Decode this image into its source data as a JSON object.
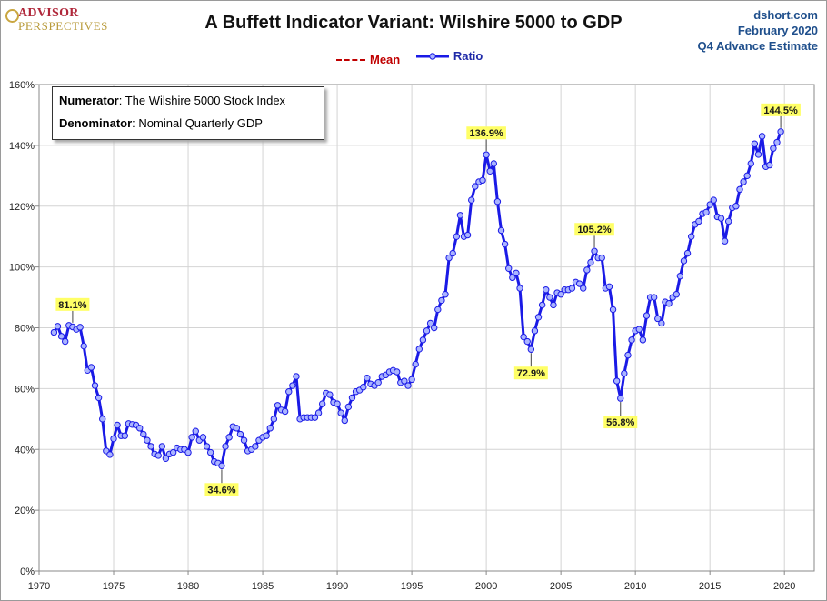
{
  "logo": {
    "line1": "ADVISOR",
    "line2": "PERSPECTIVES"
  },
  "header": {
    "title": "A Buffett Indicator Variant: Wilshire 5000 to GDP",
    "site": "dshort.com",
    "date": "February 2020",
    "estimate": "Q4 Advance Estimate"
  },
  "legend": {
    "mean": "Mean",
    "ratio": "Ratio"
  },
  "infobox": {
    "numerator_label": "Numerator",
    "numerator_text": ": The Wilshire 5000 Stock Index",
    "denominator_label": "Denominator",
    "denominator_text": ": Nominal Quarterly GDP"
  },
  "colors": {
    "ratio": "#1a1ae6",
    "marker_fill": "#aab4ff",
    "mean": "#c00000",
    "annotation_bg": "#ffff66"
  },
  "chart_data": {
    "type": "line",
    "xlim": [
      1970,
      2022
    ],
    "ylim": [
      0,
      160
    ],
    "x_ticks": [
      1970,
      1975,
      1980,
      1985,
      1990,
      1995,
      2000,
      2005,
      2010,
      2015,
      2020
    ],
    "x_tick_labels": [
      "1970",
      "1975",
      "1980",
      "1985",
      "1990",
      "1995",
      "2000",
      "2005",
      "2010",
      "2015",
      "2020"
    ],
    "y_ticks": [
      0,
      20,
      40,
      60,
      80,
      100,
      120,
      140,
      160
    ],
    "y_tick_labels": [
      "0%",
      "20%",
      "40%",
      "60%",
      "80%",
      "100%",
      "120%",
      "140%",
      "160%"
    ],
    "grid": true,
    "series": [
      {
        "name": "Ratio",
        "points": [
          [
            1971.0,
            78.5
          ],
          [
            1971.25,
            80.5
          ],
          [
            1971.5,
            77.2
          ],
          [
            1971.75,
            75.5
          ],
          [
            1972.0,
            80.8
          ],
          [
            1972.25,
            80.3
          ],
          [
            1972.5,
            79.5
          ],
          [
            1972.75,
            80.2
          ],
          [
            1973.0,
            74.0
          ],
          [
            1973.25,
            66.0
          ],
          [
            1973.5,
            67.0
          ],
          [
            1973.75,
            61.0
          ],
          [
            1974.0,
            57.0
          ],
          [
            1974.25,
            50.0
          ],
          [
            1974.5,
            39.5
          ],
          [
            1974.75,
            38.3
          ],
          [
            1975.0,
            43.5
          ],
          [
            1975.25,
            48.0
          ],
          [
            1975.5,
            44.5
          ],
          [
            1975.75,
            44.5
          ],
          [
            1976.0,
            48.5
          ],
          [
            1976.25,
            48.2
          ],
          [
            1976.5,
            48.0
          ],
          [
            1976.75,
            47.0
          ],
          [
            1977.0,
            45.0
          ],
          [
            1977.25,
            43.0
          ],
          [
            1977.5,
            41.0
          ],
          [
            1977.75,
            38.5
          ],
          [
            1978.0,
            38.0
          ],
          [
            1978.25,
            41.0
          ],
          [
            1978.5,
            37.0
          ],
          [
            1978.75,
            38.5
          ],
          [
            1979.0,
            39.0
          ],
          [
            1979.25,
            40.5
          ],
          [
            1979.5,
            40.0
          ],
          [
            1979.75,
            40.0
          ],
          [
            1980.0,
            39.0
          ],
          [
            1980.25,
            44.0
          ],
          [
            1980.5,
            46.0
          ],
          [
            1980.75,
            43.0
          ],
          [
            1981.0,
            44.0
          ],
          [
            1981.25,
            41.0
          ],
          [
            1981.5,
            39.0
          ],
          [
            1981.75,
            36.0
          ],
          [
            1982.0,
            35.5
          ],
          [
            1982.25,
            34.6
          ],
          [
            1982.5,
            41.0
          ],
          [
            1982.75,
            44.0
          ],
          [
            1983.0,
            47.5
          ],
          [
            1983.25,
            47.0
          ],
          [
            1983.5,
            45.0
          ],
          [
            1983.75,
            43.0
          ],
          [
            1984.0,
            39.5
          ],
          [
            1984.25,
            40.0
          ],
          [
            1984.5,
            41.0
          ],
          [
            1984.75,
            43.0
          ],
          [
            1985.0,
            44.0
          ],
          [
            1985.25,
            44.5
          ],
          [
            1985.5,
            47.0
          ],
          [
            1985.75,
            50.0
          ],
          [
            1986.0,
            54.5
          ],
          [
            1986.25,
            53.0
          ],
          [
            1986.5,
            52.5
          ],
          [
            1986.75,
            59.0
          ],
          [
            1987.0,
            61.0
          ],
          [
            1987.25,
            64.0
          ],
          [
            1987.5,
            50.0
          ],
          [
            1987.75,
            50.5
          ],
          [
            1988.0,
            50.5
          ],
          [
            1988.25,
            50.5
          ],
          [
            1988.5,
            50.5
          ],
          [
            1988.75,
            52.0
          ],
          [
            1989.0,
            55.0
          ],
          [
            1989.25,
            58.5
          ],
          [
            1989.5,
            58.0
          ],
          [
            1989.75,
            55.5
          ],
          [
            1990.0,
            55.0
          ],
          [
            1990.25,
            52.0
          ],
          [
            1990.5,
            49.5
          ],
          [
            1990.75,
            54.0
          ],
          [
            1991.0,
            57.0
          ],
          [
            1991.25,
            59.0
          ],
          [
            1991.5,
            59.5
          ],
          [
            1991.75,
            60.5
          ],
          [
            1992.0,
            63.5
          ],
          [
            1992.25,
            61.5
          ],
          [
            1992.5,
            61.0
          ],
          [
            1992.75,
            62.0
          ],
          [
            1993.0,
            64.0
          ],
          [
            1993.25,
            64.5
          ],
          [
            1993.5,
            65.5
          ],
          [
            1993.75,
            66.0
          ],
          [
            1994.0,
            65.5
          ],
          [
            1994.25,
            62.0
          ],
          [
            1994.5,
            62.5
          ],
          [
            1994.75,
            61.0
          ],
          [
            1995.0,
            63.0
          ],
          [
            1995.25,
            68.0
          ],
          [
            1995.5,
            73.0
          ],
          [
            1995.75,
            76.0
          ],
          [
            1996.0,
            79.0
          ],
          [
            1996.25,
            81.5
          ],
          [
            1996.5,
            80.0
          ],
          [
            1996.75,
            86.0
          ],
          [
            1997.0,
            89.0
          ],
          [
            1997.25,
            91.0
          ],
          [
            1997.5,
            103.0
          ],
          [
            1997.75,
            104.5
          ],
          [
            1998.0,
            110.0
          ],
          [
            1998.25,
            117.0
          ],
          [
            1998.5,
            110.0
          ],
          [
            1998.75,
            110.5
          ],
          [
            1999.0,
            122.0
          ],
          [
            1999.25,
            126.5
          ],
          [
            1999.5,
            128.0
          ],
          [
            1999.75,
            128.5
          ],
          [
            2000.0,
            136.9
          ],
          [
            2000.25,
            131.5
          ],
          [
            2000.5,
            134.0
          ],
          [
            2000.75,
            121.5
          ],
          [
            2001.0,
            112.0
          ],
          [
            2001.25,
            107.5
          ],
          [
            2001.5,
            99.5
          ],
          [
            2001.75,
            96.5
          ],
          [
            2002.0,
            98.0
          ],
          [
            2002.25,
            93.0
          ],
          [
            2002.5,
            77.0
          ],
          [
            2002.75,
            75.5
          ],
          [
            2003.0,
            72.9
          ],
          [
            2003.25,
            79.0
          ],
          [
            2003.5,
            83.5
          ],
          [
            2003.75,
            87.5
          ],
          [
            2004.0,
            92.5
          ],
          [
            2004.25,
            90.0
          ],
          [
            2004.5,
            87.5
          ],
          [
            2004.75,
            91.5
          ],
          [
            2005.0,
            91.0
          ],
          [
            2005.25,
            92.5
          ],
          [
            2005.5,
            92.5
          ],
          [
            2005.75,
            93.0
          ],
          [
            2006.0,
            95.0
          ],
          [
            2006.25,
            94.5
          ],
          [
            2006.5,
            93.0
          ],
          [
            2006.75,
            99.0
          ],
          [
            2007.0,
            101.5
          ],
          [
            2007.25,
            105.2
          ],
          [
            2007.5,
            103.0
          ],
          [
            2007.75,
            103.0
          ],
          [
            2008.0,
            93.0
          ],
          [
            2008.25,
            93.5
          ],
          [
            2008.5,
            86.0
          ],
          [
            2008.75,
            62.5
          ],
          [
            2009.0,
            56.8
          ],
          [
            2009.25,
            65.0
          ],
          [
            2009.5,
            71.0
          ],
          [
            2009.75,
            76.0
          ],
          [
            2010.0,
            79.0
          ],
          [
            2010.25,
            79.5
          ],
          [
            2010.5,
            76.0
          ],
          [
            2010.75,
            84.0
          ],
          [
            2011.0,
            90.0
          ],
          [
            2011.25,
            90.0
          ],
          [
            2011.5,
            83.0
          ],
          [
            2011.75,
            81.5
          ],
          [
            2012.0,
            88.5
          ],
          [
            2012.25,
            88.0
          ],
          [
            2012.5,
            90.0
          ],
          [
            2012.75,
            91.0
          ],
          [
            2013.0,
            97.0
          ],
          [
            2013.25,
            102.0
          ],
          [
            2013.5,
            104.5
          ],
          [
            2013.75,
            110.0
          ],
          [
            2014.0,
            114.0
          ],
          [
            2014.25,
            115.0
          ],
          [
            2014.5,
            117.5
          ],
          [
            2014.75,
            118.0
          ],
          [
            2015.0,
            120.5
          ],
          [
            2015.25,
            122.0
          ],
          [
            2015.5,
            116.5
          ],
          [
            2015.75,
            116.0
          ],
          [
            2016.0,
            108.5
          ],
          [
            2016.25,
            115.0
          ],
          [
            2016.5,
            119.5
          ],
          [
            2016.75,
            120.0
          ],
          [
            2017.0,
            125.5
          ],
          [
            2017.25,
            128.0
          ],
          [
            2017.5,
            130.0
          ],
          [
            2017.75,
            134.0
          ],
          [
            2018.0,
            140.5
          ],
          [
            2018.25,
            137.0
          ],
          [
            2018.5,
            143.0
          ],
          [
            2018.75,
            133.0
          ],
          [
            2019.0,
            133.5
          ],
          [
            2019.25,
            139.0
          ],
          [
            2019.5,
            141.0
          ],
          [
            2019.75,
            144.5
          ]
        ]
      }
    ],
    "annotations": [
      {
        "label": "81.1%",
        "x": 1972.25,
        "y": 80.5,
        "pos": "above"
      },
      {
        "label": "34.6%",
        "x": 1982.25,
        "y": 34.6,
        "pos": "below"
      },
      {
        "label": "136.9%",
        "x": 2000.0,
        "y": 136.9,
        "pos": "above"
      },
      {
        "label": "72.9%",
        "x": 2003.0,
        "y": 72.9,
        "pos": "below"
      },
      {
        "label": "105.2%",
        "x": 2007.25,
        "y": 105.2,
        "pos": "above"
      },
      {
        "label": "56.8%",
        "x": 2009.0,
        "y": 56.8,
        "pos": "below"
      },
      {
        "label": "144.5%",
        "x": 2019.75,
        "y": 144.5,
        "pos": "above"
      }
    ]
  }
}
